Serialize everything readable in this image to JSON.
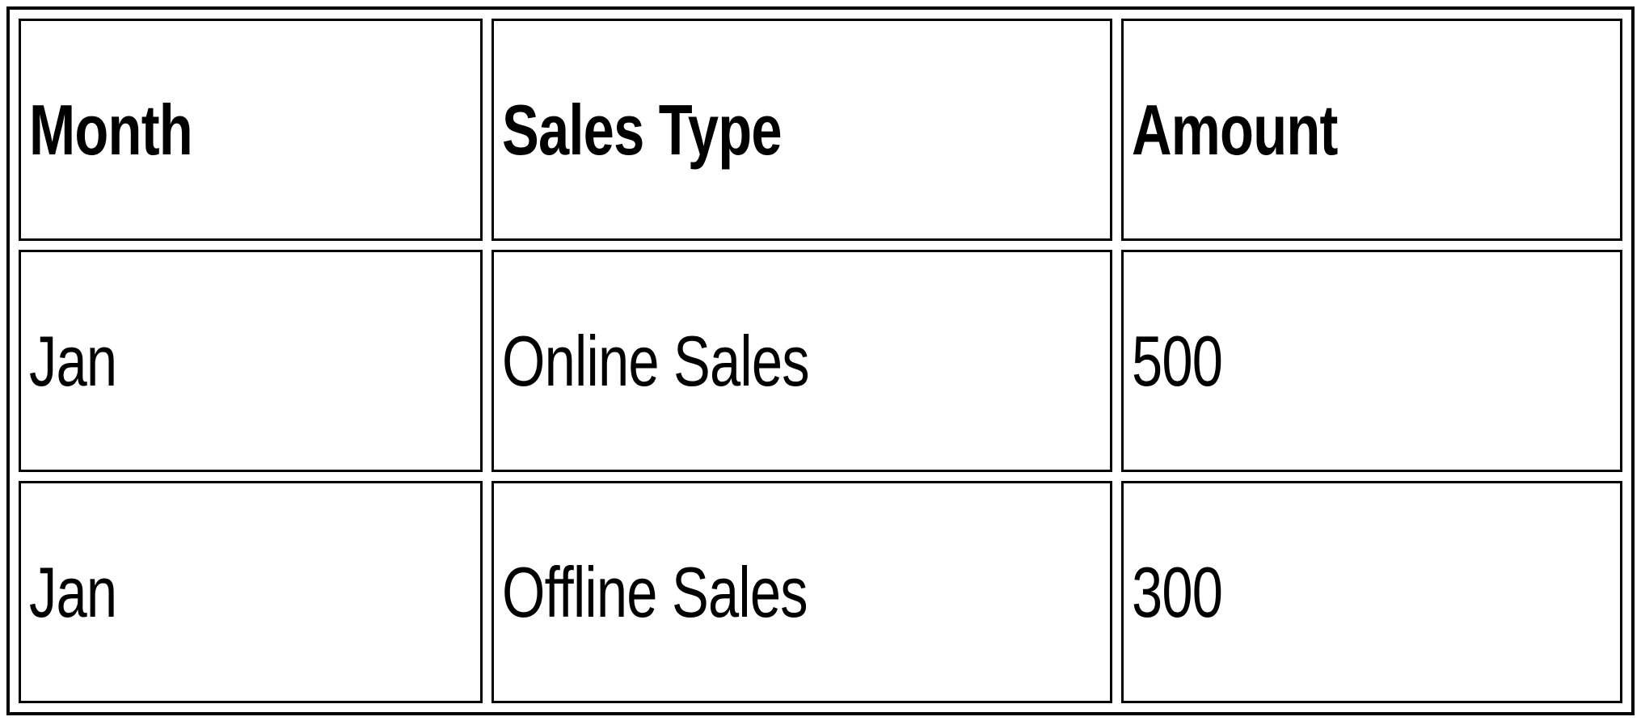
{
  "table": {
    "headers": [
      {
        "label": "Month"
      },
      {
        "label": "Sales Type"
      },
      {
        "label": "Amount"
      }
    ],
    "rows": [
      {
        "month": "Jan",
        "sales_type": "Online Sales",
        "amount": "500"
      },
      {
        "month": "Jan",
        "sales_type": "Offline Sales",
        "amount": "300"
      }
    ]
  },
  "colors": {
    "border": "#000000",
    "text": "#000000",
    "background": "#ffffff"
  }
}
